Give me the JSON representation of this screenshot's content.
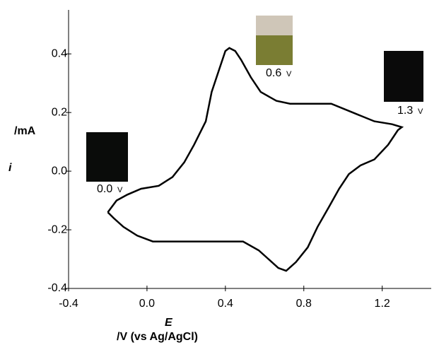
{
  "chart_data": {
    "type": "line",
    "x_label_symbol": "E",
    "x_label_unit": "/V (vs Ag/AgCl)",
    "y_label_symbol": "i",
    "y_label_unit": "/mA",
    "xlim": [
      -0.4,
      1.45
    ],
    "ylim": [
      -0.4,
      0.55
    ],
    "xticks": [
      -0.4,
      {
        "value": 0,
        "label": "0.0"
      },
      0.4,
      0.8,
      1.2
    ],
    "yticks": [
      -0.4,
      -0.2,
      {
        "value": 0,
        "label": "0.0"
      },
      0.2,
      0.4
    ],
    "series": [
      {
        "color": "#000000",
        "x": [
          -0.2,
          -0.155,
          -0.1,
          -0.03,
          0.06,
          0.13,
          0.19,
          0.24,
          0.3,
          0.33,
          0.37,
          0.4,
          0.42,
          0.45,
          0.48,
          0.53,
          0.58,
          0.66,
          0.73,
          0.8,
          0.87,
          0.94,
          1.05,
          1.16,
          1.25,
          1.3,
          1.28,
          1.23,
          1.16,
          1.09,
          1.03,
          0.98,
          0.93,
          0.87,
          0.82,
          0.76,
          0.71,
          0.67,
          0.62,
          0.57,
          0.49,
          0.4,
          0.3,
          0.21,
          0.12,
          0.03,
          -0.05,
          -0.12,
          -0.17,
          -0.2
        ],
        "values": [
          -0.14,
          -0.1,
          -0.08,
          -0.06,
          -0.05,
          -0.02,
          0.03,
          0.09,
          0.17,
          0.27,
          0.35,
          0.41,
          0.42,
          0.41,
          0.38,
          0.32,
          0.27,
          0.24,
          0.23,
          0.23,
          0.23,
          0.23,
          0.2,
          0.17,
          0.16,
          0.15,
          0.14,
          0.09,
          0.04,
          0.02,
          -0.01,
          -0.06,
          -0.12,
          -0.19,
          -0.26,
          -0.31,
          -0.34,
          -0.33,
          -0.3,
          -0.27,
          -0.24,
          -0.24,
          -0.24,
          -0.24,
          -0.24,
          -0.24,
          -0.22,
          -0.19,
          -0.16,
          -0.14
        ]
      }
    ],
    "annotations": [
      {
        "text": "0.0",
        "unit": "V"
      },
      {
        "text": "0.6",
        "unit": "V"
      },
      {
        "text": "1.3",
        "unit": "V"
      }
    ]
  }
}
